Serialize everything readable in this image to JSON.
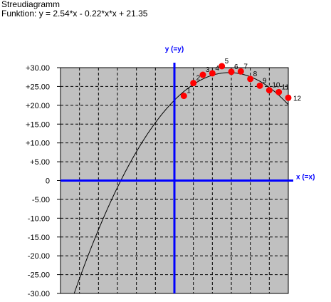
{
  "chart_data": {
    "type": "scatter",
    "title": "Streudiagramm",
    "subtitle": "Funktion: y = 2.54*x - 0.22*x*x + 21.35",
    "xlabel": "x (=x)",
    "ylabel": "y (=y)",
    "xlim": [
      -12,
      12
    ],
    "ylim": [
      -30,
      30
    ],
    "y_ticks": [
      "+30.00",
      "+25.00",
      "+20.00",
      "+15.00",
      "+10.00",
      "+5.00",
      "0",
      "-5.00",
      "-10.00",
      "-15.00",
      "-20.00",
      "-25.00",
      "-30.00"
    ],
    "grid": true,
    "function": {
      "a": -0.22,
      "b": 2.54,
      "c": 21.35
    },
    "points": [
      {
        "label": "1",
        "x": 1,
        "y": 22.5
      },
      {
        "label": "2",
        "x": 2,
        "y": 25.9
      },
      {
        "label": "3",
        "x": 3,
        "y": 28.1
      },
      {
        "label": "4",
        "x": 4,
        "y": 28.5
      },
      {
        "label": "5",
        "x": 5,
        "y": 30.4
      },
      {
        "label": "6",
        "x": 6,
        "y": 28.9
      },
      {
        "label": "7",
        "x": 7,
        "y": 29.0
      },
      {
        "label": "8",
        "x": 8,
        "y": 27.0
      },
      {
        "label": "9",
        "x": 9,
        "y": 25.2
      },
      {
        "label": "10",
        "x": 10,
        "y": 24.0
      },
      {
        "label": "11",
        "x": 11,
        "y": 23.5
      },
      {
        "label": "12",
        "x": 12,
        "y": 22.0
      }
    ],
    "colors": {
      "plot_background": "#c0c0c0",
      "axis": "#0000ff",
      "points": "#ff0000",
      "curve": "#000000",
      "grid": "#000000"
    }
  }
}
